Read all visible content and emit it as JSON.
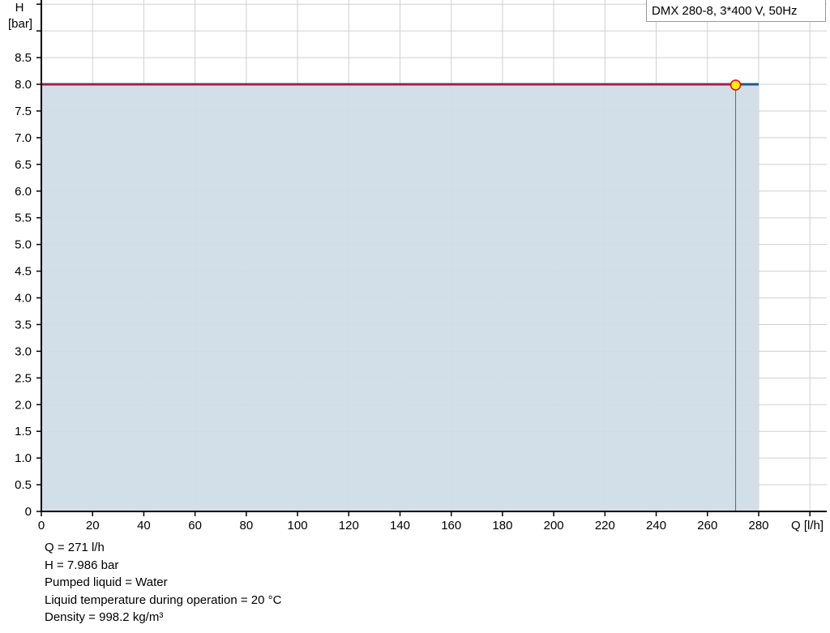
{
  "chart_data": {
    "type": "area",
    "title": "",
    "xlabel": "Q [l/h]",
    "ylabel_line1": "H",
    "ylabel_line2": "[bar]",
    "xlim": [
      0,
      300
    ],
    "ylim": [
      0,
      9.5
    ],
    "grid": true,
    "x_ticks": [
      0,
      20,
      40,
      60,
      80,
      100,
      120,
      140,
      160,
      180,
      200,
      220,
      240,
      260,
      280
    ],
    "y_ticks": [
      "0",
      "0.5",
      "1.0",
      "1.5",
      "2.0",
      "2.5",
      "3.0",
      "3.5",
      "4.0",
      "4.5",
      "5.0",
      "5.5",
      "6.0",
      "6.5",
      "7.0",
      "7.5",
      "8.0",
      "8.5"
    ],
    "series": [
      {
        "name": "DMX 280-8, 3*400 V, 50Hz",
        "x": [
          0,
          280
        ],
        "y": [
          8.0,
          8.0
        ],
        "color": "#1f5a8c",
        "fill": "#d0dce7"
      }
    ],
    "duty_point": {
      "q": 271,
      "h": 7.986,
      "color": "#ffee00",
      "stroke": "#e8001c"
    },
    "legend_position": "top-right"
  },
  "info": {
    "q": "Q = 271 l/h",
    "h": "H = 7.986 bar",
    "liquid": "Pumped liquid = Water",
    "temp": "Liquid temperature during operation = 20 °C",
    "density": "Density = 998.2 kg/m³"
  }
}
